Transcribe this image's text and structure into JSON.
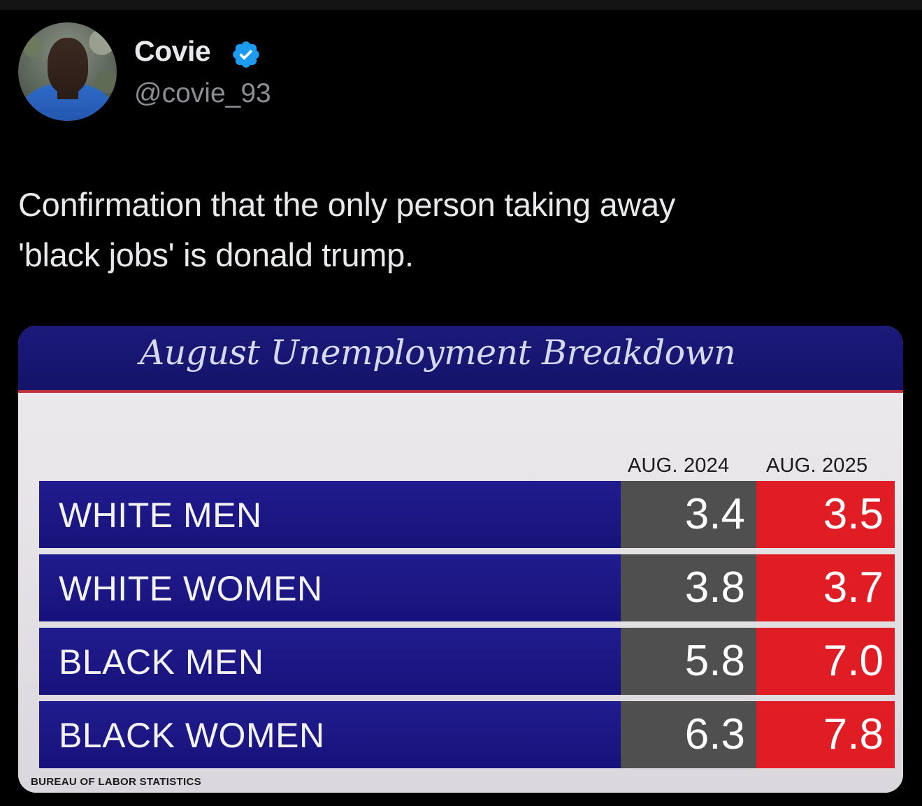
{
  "tweet": {
    "display_name": "Covie",
    "handle": "@covie_93",
    "text_line1": "Confirmation that the only person taking away",
    "text_line2": "'black jobs' is donald trump.",
    "verified_color": "#1d9bf0"
  },
  "chart_data": {
    "type": "table",
    "title": "August Unemployment Breakdown",
    "columns": [
      "AUG. 2024",
      "AUG. 2025"
    ],
    "rows": [
      {
        "label": "WHITE MEN",
        "values": [
          "3.4",
          "3.5"
        ]
      },
      {
        "label": "WHITE WOMEN",
        "values": [
          "3.8",
          "3.7"
        ]
      },
      {
        "label": "BLACK MEN",
        "values": [
          "5.8",
          "7.0"
        ]
      },
      {
        "label": "BLACK WOMEN",
        "values": [
          "6.3",
          "7.8"
        ]
      }
    ],
    "source": "BUREAU OF LABOR STATISTICS",
    "colors": {
      "label_bg": "#1a1585",
      "col_2024_bg": "#4f4f4f",
      "col_2025_bg": "#e01d24"
    }
  }
}
